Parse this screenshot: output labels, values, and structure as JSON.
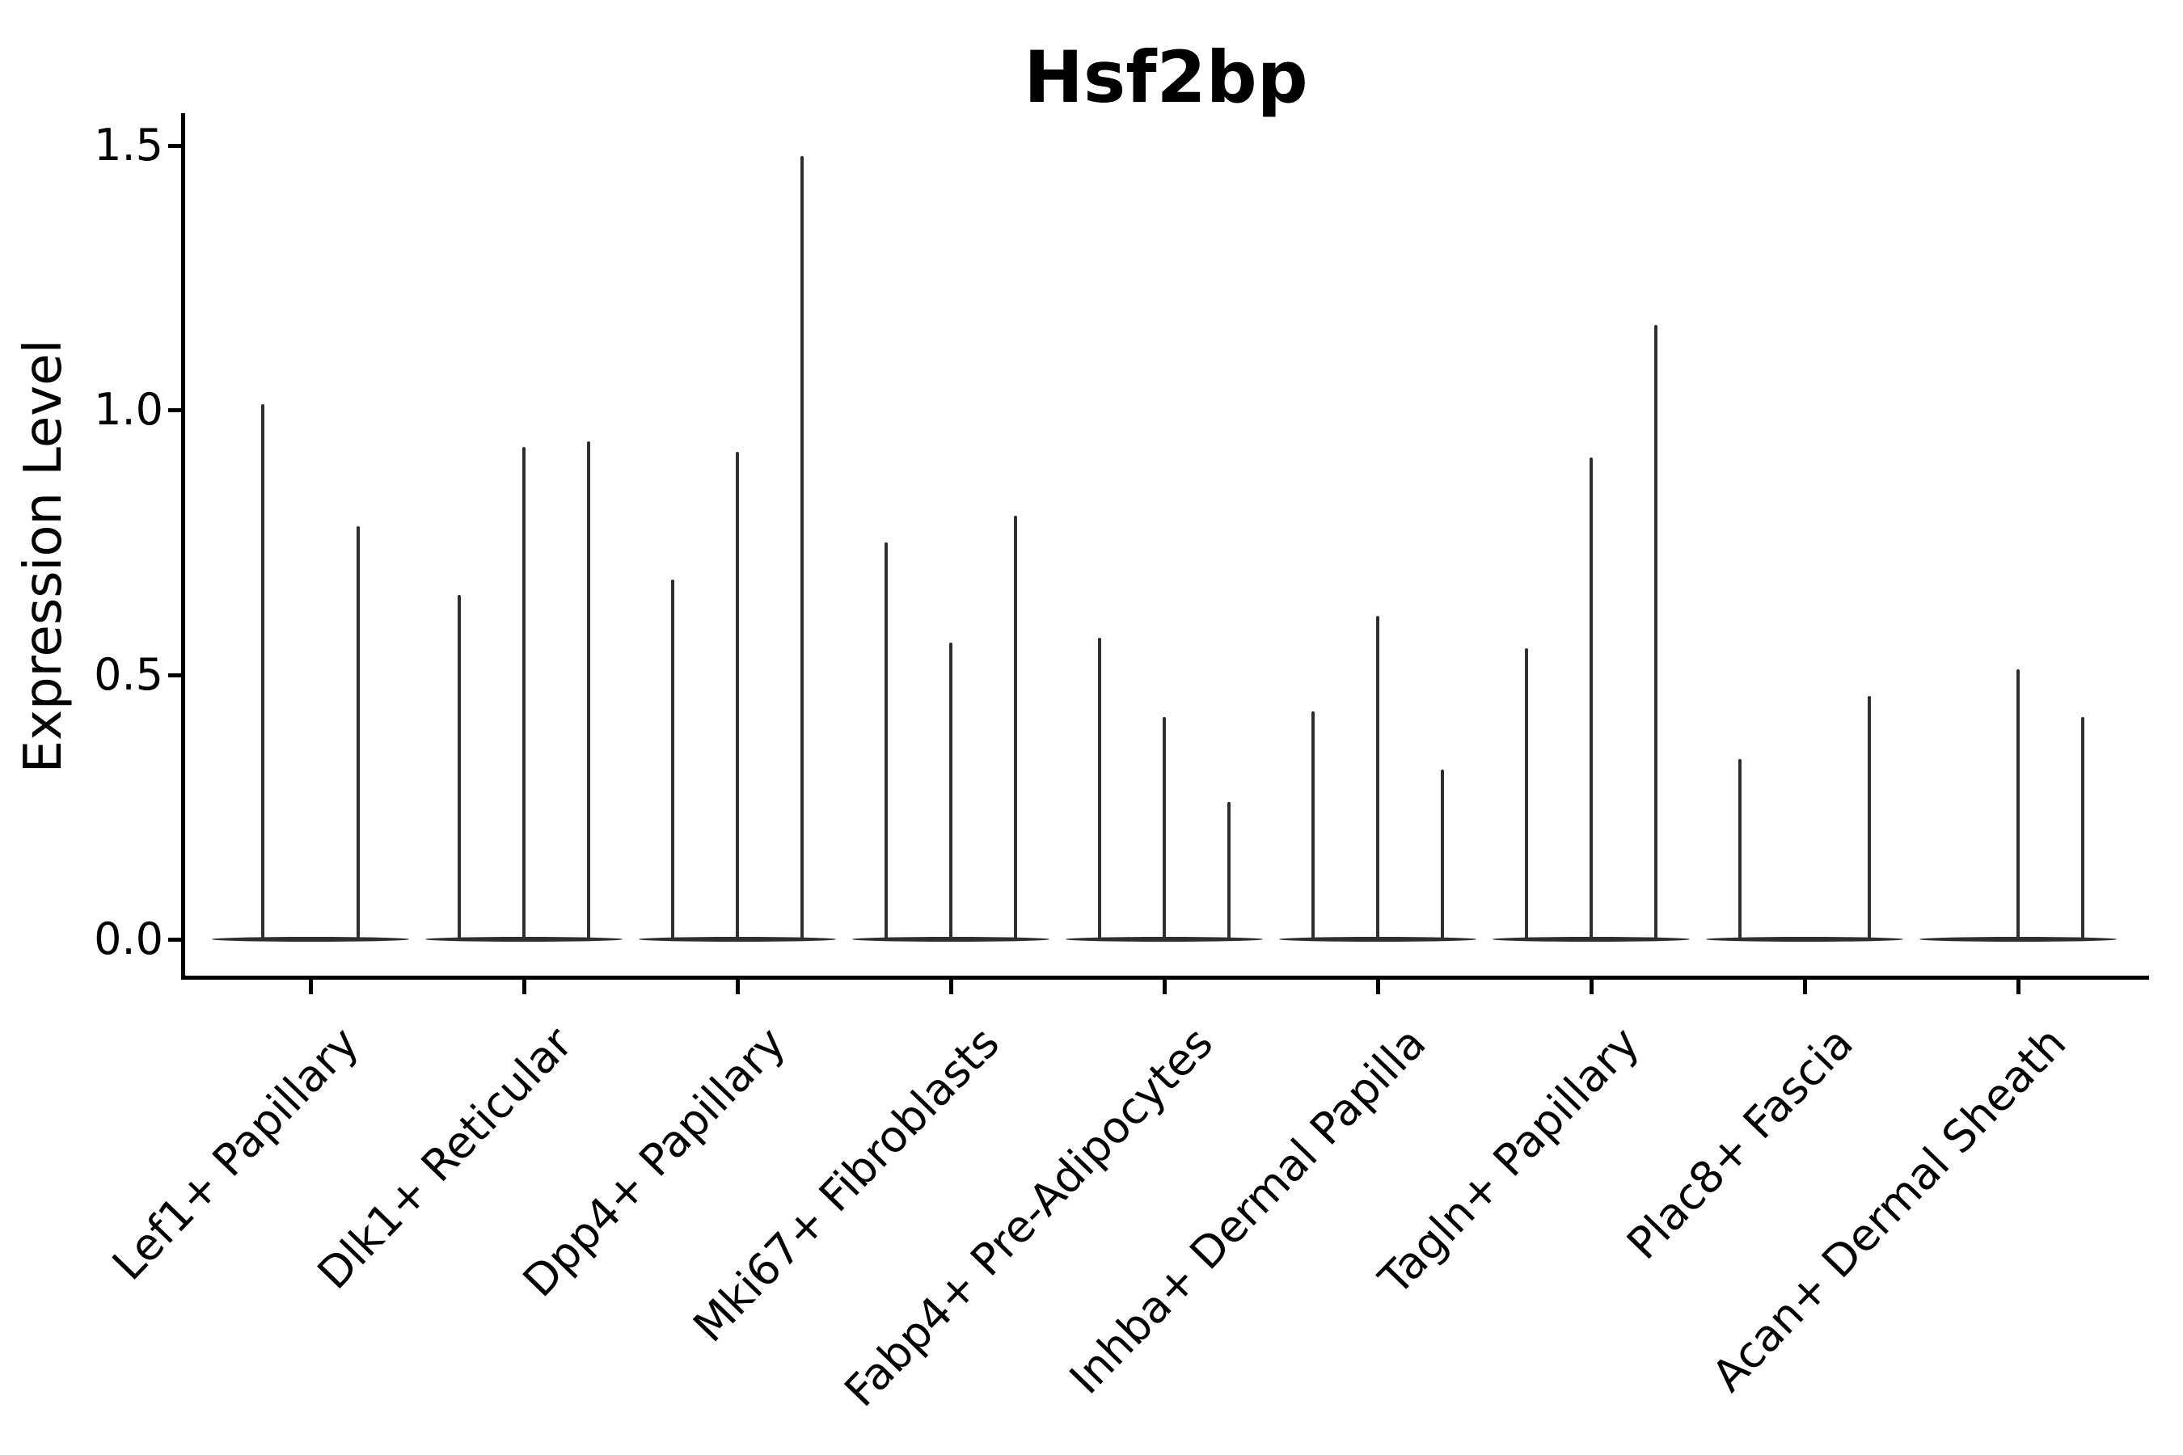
{
  "title": "Hsf2bp",
  "y_axis": {
    "label": "Expression Level",
    "tick_labels": [
      "0.0",
      "0.5",
      "1.0",
      "1.5"
    ]
  },
  "x_axis": {
    "category_labels": [
      "Lef1+ Papillary",
      "Dlk1+ Reticular",
      "Dpp4+ Papillary",
      "Mki67+ Fibroblasts",
      "Fabp4+ Pre-Adipocytes",
      "Inhba+ Dermal Papilla",
      "Tagln+ Papillary",
      "Plac8+ Fascia",
      "Acan+ Dermal Sheath"
    ]
  },
  "colors": {
    "violin_line": "#2e2e2e",
    "axis": "#000000",
    "text": "#000000",
    "background": "#ffffff"
  },
  "chart_data": {
    "type": "violin",
    "title": "Hsf2bp",
    "xlabel": "",
    "ylabel": "Expression Level",
    "ylim": [
      0,
      1.55
    ],
    "yticks": [
      0.0,
      0.5,
      1.0,
      1.5
    ],
    "grid": false,
    "legend": false,
    "categories": [
      "Lef1+ Papillary",
      "Dlk1+ Reticular",
      "Dpp4+ Papillary",
      "Mki67+ Fibroblasts",
      "Fabp4+ Pre-Adipocytes",
      "Inhba+ Dermal Papilla",
      "Tagln+ Papillary",
      "Plac8+ Fascia",
      "Acan+ Dermal Sheath"
    ],
    "series": [
      {
        "category": "Lef1+ Papillary",
        "violin_peak_values": [
          1.01,
          0.78
        ]
      },
      {
        "category": "Dlk1+ Reticular",
        "violin_peak_values": [
          0.65,
          0.93,
          0.94
        ]
      },
      {
        "category": "Dpp4+ Papillary",
        "violin_peak_values": [
          0.68,
          0.92,
          1.48
        ]
      },
      {
        "category": "Mki67+ Fibroblasts",
        "violin_peak_values": [
          0.75,
          0.56,
          0.8
        ]
      },
      {
        "category": "Fabp4+ Pre-Adipocytes",
        "violin_peak_values": [
          0.57,
          0.42,
          0.26
        ]
      },
      {
        "category": "Inhba+ Dermal Papilla",
        "violin_peak_values": [
          0.43,
          0.61,
          0.32
        ]
      },
      {
        "category": "Tagln+ Papillary",
        "violin_peak_values": [
          0.55,
          0.91,
          1.16
        ]
      },
      {
        "category": "Plac8+ Fascia",
        "violin_peak_values": [
          0.34,
          0.0,
          0.46
        ]
      },
      {
        "category": "Acan+ Dermal Sheath",
        "violin_peak_values": [
          0.0,
          0.51,
          0.42
        ]
      }
    ],
    "note": "Each category shows narrow violins collapsed to a flat line at 0 with a thin spike up to the maximum expression value; a peak value of 0 means that violin is entirely flat at zero."
  }
}
